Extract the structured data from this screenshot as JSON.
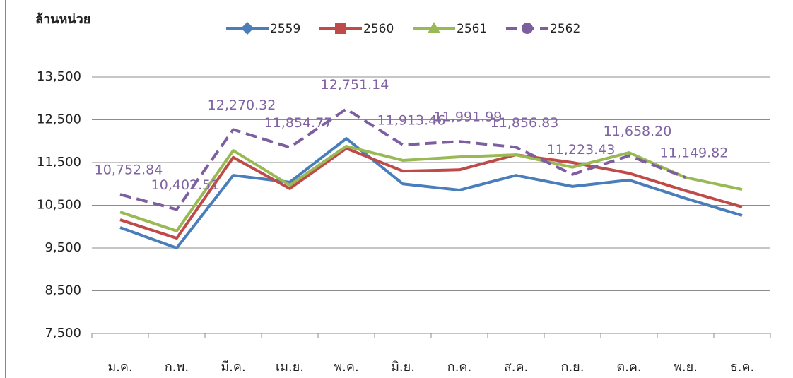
{
  "chart_data": {
    "type": "line",
    "y_label": "ล้านหน่วย",
    "categories": [
      "ม.ค.",
      "ก.พ.",
      "มี.ค.",
      "เม.ย.",
      "พ.ค.",
      "มิ.ย.",
      "ก.ค.",
      "ส.ค.",
      "ก.ย.",
      "ต.ค.",
      "พ.ย.",
      "ธ.ค."
    ],
    "series": [
      {
        "name": "2559",
        "color": "#4a7ebb",
        "marker": "diamond",
        "dashed": false,
        "values": [
          9980,
          9500,
          11200,
          11040,
          12060,
          11000,
          10855,
          11200,
          10940,
          11090,
          10660,
          10260
        ]
      },
      {
        "name": "2560",
        "color": "#be4b48",
        "marker": "square",
        "dashed": false,
        "values": [
          10160,
          9730,
          11620,
          10890,
          11830,
          11300,
          11330,
          11680,
          11500,
          11250,
          10840,
          10460
        ]
      },
      {
        "name": "2561",
        "color": "#98b954",
        "marker": "triangle",
        "dashed": false,
        "values": [
          10340,
          9900,
          11780,
          10970,
          11880,
          11550,
          11630,
          11680,
          11390,
          11730,
          11150,
          10870
        ]
      },
      {
        "name": "2562",
        "color": "#7d5fa0",
        "marker": "circle",
        "dashed": true,
        "values": [
          10752.84,
          10402.51,
          12270.32,
          11854.77,
          12751.14,
          11913.46,
          11991.99,
          11856.83,
          11223.43,
          11658.2,
          11149.82,
          null
        ],
        "value_labels": [
          "10,752.84",
          "10,402.51",
          "12,270.32",
          "11,854.77",
          "12,751.14",
          "11,913.46",
          "11,991.99",
          "11,856.83",
          "11,223.43",
          "11,658.20",
          "11,149.82",
          null
        ]
      }
    ],
    "ylim": [
      7500,
      13500
    ],
    "yticks": [
      {
        "value": 7500,
        "label": "7,500"
      },
      {
        "value": 8500,
        "label": "8,500"
      },
      {
        "value": 9500,
        "label": "9,500"
      },
      {
        "value": 10500,
        "label": "10,500"
      },
      {
        "value": 11500,
        "label": "11,500"
      },
      {
        "value": 12500,
        "label": "12,500"
      },
      {
        "value": 13500,
        "label": "13,500"
      }
    ],
    "grid": true,
    "legend": "top"
  }
}
